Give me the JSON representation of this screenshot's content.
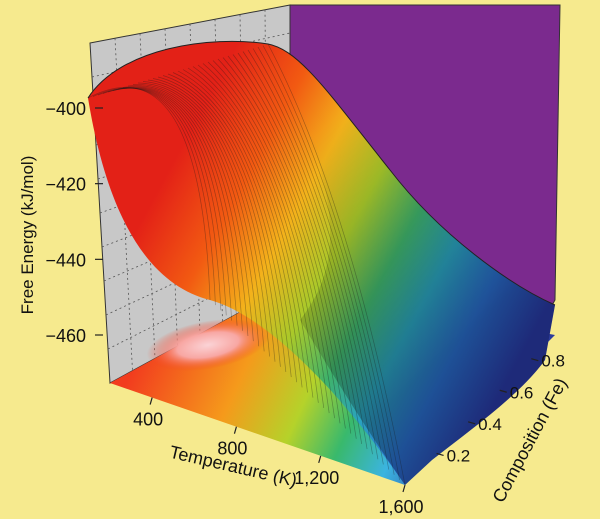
{
  "chart_data": {
    "type": "surface",
    "title": "",
    "zlabel": "Free Energy (kJ/mol)",
    "xlabel": "Temperature (K)",
    "ylabel": "Composition (Fe)",
    "x_ticks": [
      "400",
      "800",
      "1,200",
      "1,600"
    ],
    "y_ticks": [
      "0.2",
      "0.4",
      "0.6",
      "0.8"
    ],
    "z_ticks": [
      "-400",
      "-420",
      "-440",
      "-460"
    ],
    "x_tick_values": [
      400,
      800,
      1200,
      1600
    ],
    "y_tick_values": [
      0.2,
      0.4,
      0.6,
      0.8
    ],
    "z_tick_values": [
      -400,
      -420,
      -440,
      -460
    ],
    "xlim": [
      200,
      1600
    ],
    "ylim": [
      0.0,
      0.95
    ],
    "zlim": [
      -470,
      -385
    ],
    "surface_points": [
      {
        "temperature": 200,
        "free_energy": -399
      },
      {
        "temperature": 400,
        "free_energy": -390
      },
      {
        "temperature": 600,
        "free_energy": -391
      },
      {
        "temperature": 800,
        "free_energy": -399
      },
      {
        "temperature": 1000,
        "free_energy": -412
      },
      {
        "temperature": 1200,
        "free_energy": -430
      },
      {
        "temperature": 1400,
        "free_energy": -449
      },
      {
        "temperature": 1600,
        "free_energy": -467
      }
    ],
    "projection": "filled contour on floor",
    "background_wall_color": "#7b2a8e",
    "side_wall_color": "#c8c8c8",
    "grid": true
  }
}
